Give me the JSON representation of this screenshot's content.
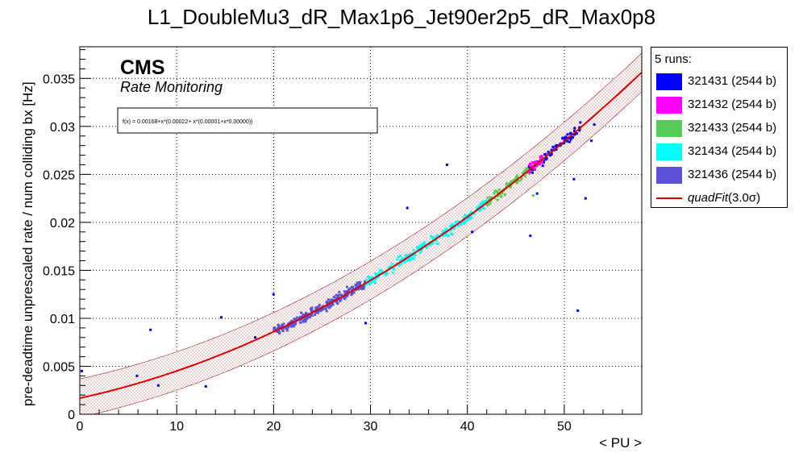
{
  "title": "L1_DoubleMu3_dR_Max1p6_Jet90er2p5_dR_Max0p8",
  "cms": {
    "label": "CMS",
    "sublabel": "Rate Monitoring"
  },
  "formula": "f(x) = 0.00168+x*(0.00022+ x*(0.00001+x*0.00000))",
  "legend": {
    "header": "5 runs:",
    "entries": [
      {
        "label": "321431 (2544 b)",
        "color": "#0000ff"
      },
      {
        "label": "321432 (2544 b)",
        "color": "#ff00ff"
      },
      {
        "label": "321433 (2544 b)",
        "color": "#55cc55"
      },
      {
        "label": "321434 (2544 b)",
        "color": "#00ffff"
      },
      {
        "label": "321436 (2544 b)",
        "color": "#5b52d6"
      }
    ],
    "fit_label": "quadFit",
    "fit_suffix": "(3.0σ)",
    "fit_color": "#dd0000"
  },
  "chart_data": {
    "type": "scatter",
    "xlabel": "< PU >",
    "ylabel": "pre-deadtime unprescaled rate / num colliding bx [Hz]",
    "xlim": [
      0,
      58
    ],
    "ylim": [
      0,
      0.0383
    ],
    "xticks": [
      "0",
      "10",
      "20",
      "30",
      "40",
      "50"
    ],
    "yticks": [
      "0",
      "0.005",
      "0.01",
      "0.015",
      "0.02",
      "0.025",
      "0.03",
      "0.035"
    ],
    "grid": true,
    "legend_position": "right",
    "fit": {
      "type": "quadratic",
      "coefficients": [
        0.00168,
        0.00022,
        6.3e-06
      ],
      "band_halfwidth": 0.002,
      "color": "#dd0000"
    },
    "series": [
      {
        "name": "321431 (2544 b)",
        "color": "#0000ff",
        "x_range": [
          46.2,
          51.8
        ],
        "n": 90,
        "outliers": [
          [
            0.2,
            0.0045
          ],
          [
            5.9,
            0.004
          ],
          [
            7.3,
            0.0088
          ],
          [
            8.1,
            0.003
          ],
          [
            13.0,
            0.0029
          ],
          [
            14.6,
            0.0101
          ],
          [
            18.1,
            0.008
          ],
          [
            20.0,
            0.0125
          ],
          [
            29.5,
            0.0095
          ],
          [
            33.8,
            0.0215
          ],
          [
            37.9,
            0.026
          ],
          [
            40.5,
            0.019
          ],
          [
            46.5,
            0.0186
          ],
          [
            47.2,
            0.023
          ],
          [
            51.0,
            0.0245
          ],
          [
            51.4,
            0.0108
          ],
          [
            52.2,
            0.0225
          ],
          [
            52.8,
            0.0285
          ],
          [
            53.1,
            0.0302
          ]
        ]
      },
      {
        "name": "321432 (2544 b)",
        "color": "#ff00ff",
        "x_range": [
          46.4,
          47.8
        ],
        "n": 30,
        "outliers": []
      },
      {
        "name": "321433 (2544 b)",
        "color": "#55cc55",
        "x_range": [
          42.0,
          46.5
        ],
        "n": 80,
        "outliers": [
          [
            46.8,
            0.0228
          ]
        ]
      },
      {
        "name": "321434 (2544 b)",
        "color": "#00ffff",
        "x_range": [
          29.5,
          42.0
        ],
        "n": 230,
        "outliers": []
      },
      {
        "name": "321436 (2544 b)",
        "color": "#5b52d6",
        "x_range": [
          20.0,
          29.5
        ],
        "n": 260,
        "outliers": []
      }
    ]
  }
}
